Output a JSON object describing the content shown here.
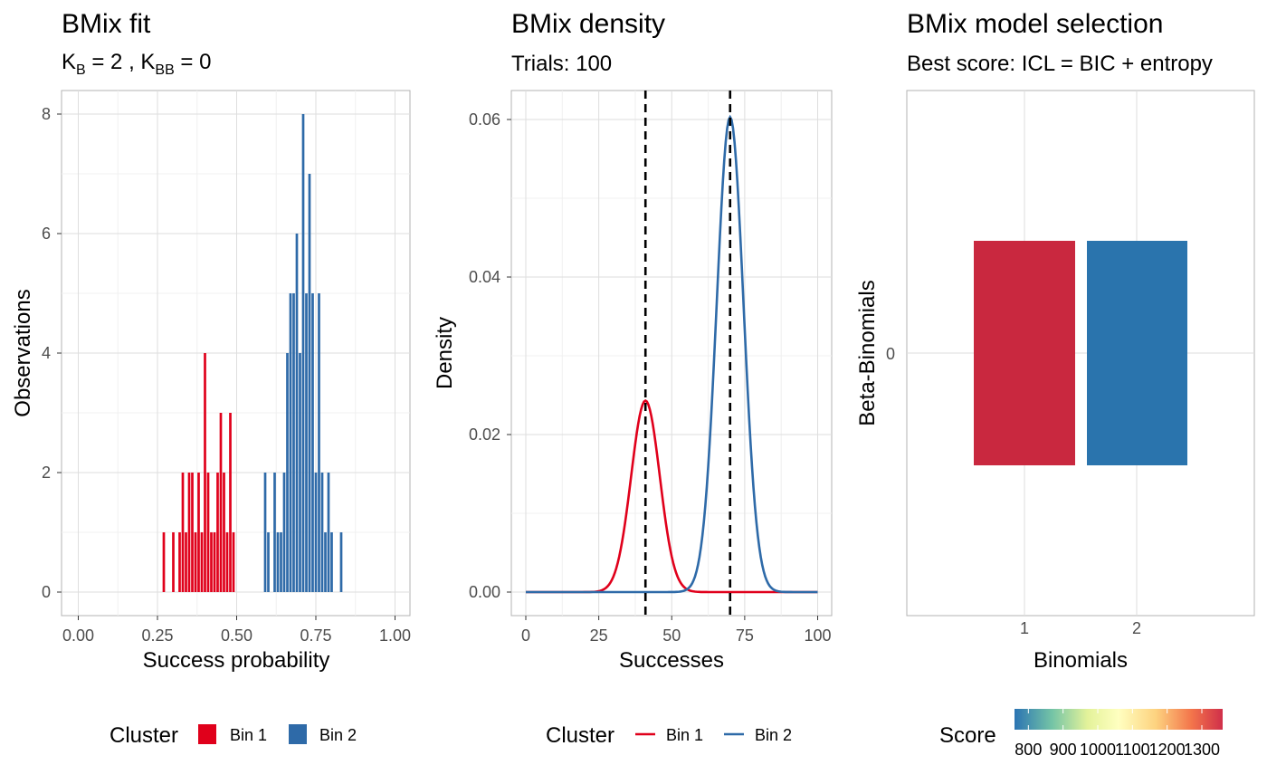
{
  "colors": {
    "bin1": "#e0001b",
    "bin2": "#2e6aa8",
    "score_bin1": "#c9283f",
    "score_bin2": "#2a74ad"
  },
  "chart_data": [
    {
      "type": "bar",
      "title": "BMix fit",
      "subtitle": {
        "k_b": "2",
        "k_bb": "0"
      },
      "xlabel": "Success probability",
      "ylabel": "Observations",
      "xlim": [
        0,
        1
      ],
      "ylim": [
        0,
        8
      ],
      "xticks": [
        "0.00",
        "0.25",
        "0.50",
        "0.75",
        "1.00"
      ],
      "yticks": [
        "0",
        "2",
        "4",
        "6",
        "8"
      ],
      "bin_width": 0.01,
      "series": [
        {
          "name": "Bin 1",
          "bins": [
            {
              "x": 0.27,
              "count": 1
            },
            {
              "x": 0.3,
              "count": 1
            },
            {
              "x": 0.32,
              "count": 1
            },
            {
              "x": 0.33,
              "count": 2
            },
            {
              "x": 0.34,
              "count": 1
            },
            {
              "x": 0.35,
              "count": 2
            },
            {
              "x": 0.36,
              "count": 2
            },
            {
              "x": 0.37,
              "count": 1
            },
            {
              "x": 0.38,
              "count": 2
            },
            {
              "x": 0.39,
              "count": 1
            },
            {
              "x": 0.4,
              "count": 4
            },
            {
              "x": 0.41,
              "count": 2
            },
            {
              "x": 0.42,
              "count": 1
            },
            {
              "x": 0.43,
              "count": 1
            },
            {
              "x": 0.44,
              "count": 2
            },
            {
              "x": 0.45,
              "count": 3
            },
            {
              "x": 0.46,
              "count": 2
            },
            {
              "x": 0.47,
              "count": 1
            },
            {
              "x": 0.48,
              "count": 3
            },
            {
              "x": 0.49,
              "count": 1
            }
          ]
        },
        {
          "name": "Bin 2",
          "bins": [
            {
              "x": 0.59,
              "count": 2
            },
            {
              "x": 0.6,
              "count": 1
            },
            {
              "x": 0.62,
              "count": 2
            },
            {
              "x": 0.63,
              "count": 1
            },
            {
              "x": 0.64,
              "count": 1
            },
            {
              "x": 0.65,
              "count": 2
            },
            {
              "x": 0.66,
              "count": 4
            },
            {
              "x": 0.67,
              "count": 5
            },
            {
              "x": 0.68,
              "count": 5
            },
            {
              "x": 0.69,
              "count": 6
            },
            {
              "x": 0.7,
              "count": 4
            },
            {
              "x": 0.71,
              "count": 8
            },
            {
              "x": 0.72,
              "count": 5
            },
            {
              "x": 0.73,
              "count": 7
            },
            {
              "x": 0.74,
              "count": 5
            },
            {
              "x": 0.75,
              "count": 2
            },
            {
              "x": 0.76,
              "count": 5
            },
            {
              "x": 0.77,
              "count": 2
            },
            {
              "x": 0.78,
              "count": 1
            },
            {
              "x": 0.79,
              "count": 2
            },
            {
              "x": 0.8,
              "count": 1
            },
            {
              "x": 0.83,
              "count": 1
            }
          ]
        }
      ],
      "legend": {
        "title": "Cluster",
        "items": [
          "Bin 1",
          "Bin 2"
        ],
        "position": "bottom"
      }
    },
    {
      "type": "line",
      "title": "BMix density",
      "subtitle": "Trials: 100",
      "xlabel": "Successes",
      "ylabel": "Density",
      "xlim": [
        0,
        100
      ],
      "ylim": [
        0,
        0.06
      ],
      "xticks": [
        "0",
        "25",
        "50",
        "75",
        "100"
      ],
      "yticks": [
        "0.00",
        "0.02",
        "0.04",
        "0.06"
      ],
      "series": [
        {
          "name": "Bin 1",
          "peak_x": 41,
          "peak_density": 0.0243,
          "sd": 4.9
        },
        {
          "name": "Bin 2",
          "peak_x": 70,
          "peak_density": 0.0603,
          "sd": 4.6
        }
      ],
      "vlines": [
        41,
        70
      ],
      "legend": {
        "title": "Cluster",
        "items": [
          "Bin 1",
          "Bin 2"
        ],
        "position": "bottom"
      }
    },
    {
      "type": "heatmap",
      "title": "BMix model selection",
      "subtitle": "Best score: ICL = BIC + entropy",
      "xlabel": "Binomials",
      "ylabel": "Beta-Binomials",
      "xticks": [
        "1",
        "2"
      ],
      "yticks": [
        "0"
      ],
      "cells": [
        {
          "binomials": 1,
          "beta_binomials": 0,
          "score": 1270
        },
        {
          "binomials": 2,
          "beta_binomials": 0,
          "score": 780
        }
      ],
      "legend": {
        "title": "Score",
        "ticks": [
          "800",
          "900",
          "1000",
          "1100",
          "1200",
          "1300"
        ],
        "range": [
          760,
          1360
        ],
        "position": "bottom"
      }
    }
  ]
}
